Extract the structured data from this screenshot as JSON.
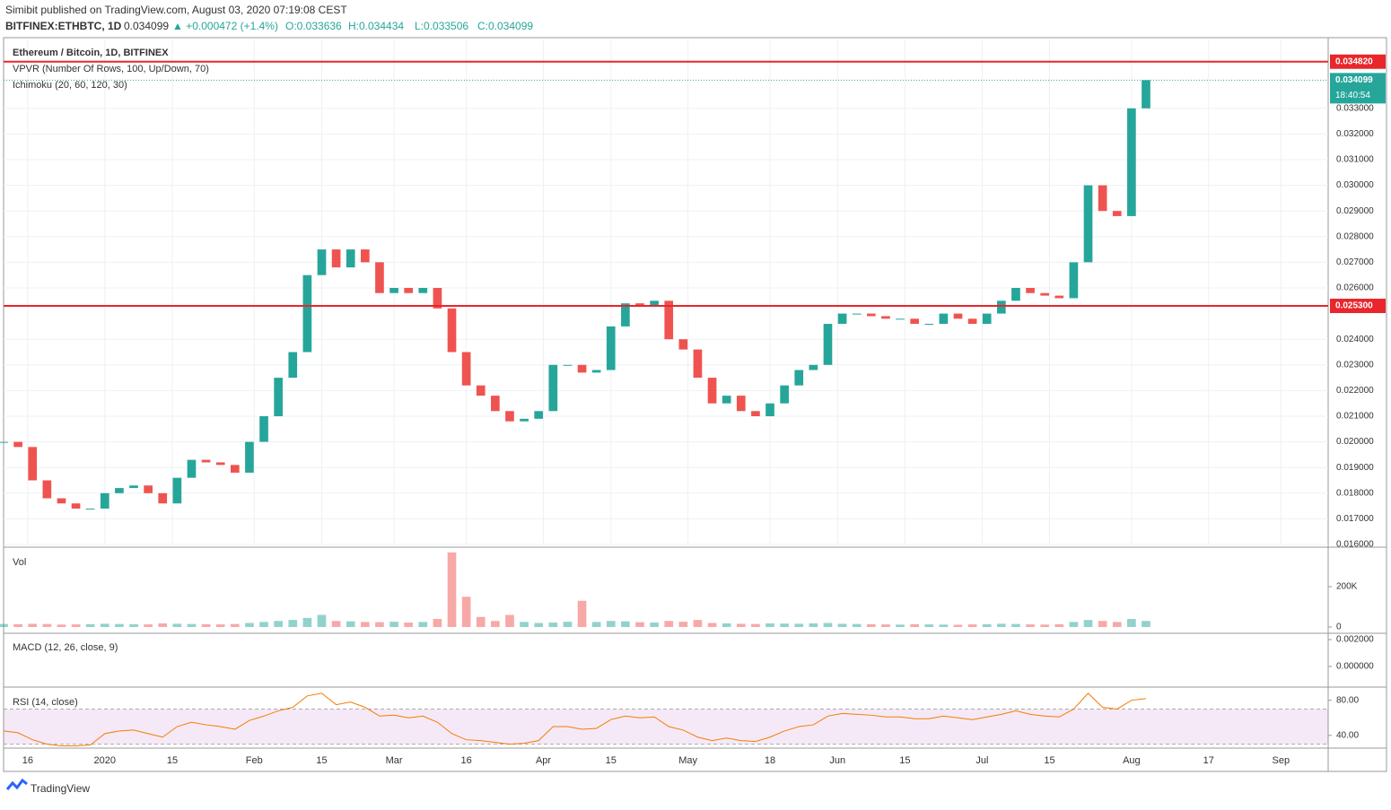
{
  "header": {
    "published": "Simibit published on TradingView.com, August 03, 2020 07:19:08 CEST",
    "symbol": "BITFINEX:ETHBTC, 1D",
    "last": "0.034099",
    "change": "▲ +0.000472 (+1.4%)",
    "open": "O:0.033636",
    "high": "H:0.034434",
    "low": "L:0.033506",
    "close": "C:0.034099"
  },
  "footer": "TradingView",
  "chart_data": {
    "type": "candlestick",
    "title": "Ethereum / Bitcoin, 1D, BITFINEX",
    "indicators": [
      "VPVR (Number Of Rows, 100, Up/Down, 70)",
      "Ichimoku (20, 60, 120, 30)"
    ],
    "up_color": "#26a69a",
    "down_color": "#ef5350",
    "values": [
      0.02,
      0.0198,
      0.0185,
      0.0178,
      0.0176,
      0.0174,
      0.0174,
      0.018,
      0.0182,
      0.0183,
      0.018,
      0.0176,
      0.0186,
      0.0193,
      0.0192,
      0.0191,
      0.0188,
      0.02,
      0.021,
      0.0225,
      0.0235,
      0.0265,
      0.0275,
      0.0268,
      0.0275,
      0.027,
      0.0258,
      0.026,
      0.0258,
      0.026,
      0.0252,
      0.0235,
      0.0222,
      0.0218,
      0.0212,
      0.0208,
      0.0209,
      0.0212,
      0.023,
      0.023,
      0.0227,
      0.0228,
      0.0245,
      0.0254,
      0.0253,
      0.0255,
      0.024,
      0.0236,
      0.0225,
      0.0215,
      0.0218,
      0.0212,
      0.021,
      0.0215,
      0.0222,
      0.0228,
      0.023,
      0.0246,
      0.025,
      0.025,
      0.0249,
      0.0248,
      0.0248,
      0.0246,
      0.0246,
      0.025,
      0.0248,
      0.0246,
      0.025,
      0.0255,
      0.026,
      0.0258,
      0.0257,
      0.0256,
      0.027,
      0.03,
      0.029,
      0.0288,
      0.033,
      0.034099
    ],
    "xlim": [
      0,
      91.6
    ],
    "xticks": [
      {
        "value": 1.67,
        "label": "16"
      },
      {
        "value": 7,
        "label": "2020"
      },
      {
        "value": 11.67,
        "label": "15"
      },
      {
        "value": 17.33,
        "label": "Feb"
      },
      {
        "value": 22,
        "label": "15"
      },
      {
        "value": 27,
        "label": "Mar"
      },
      {
        "value": 32,
        "label": "16"
      },
      {
        "value": 37.33,
        "label": "Apr"
      },
      {
        "value": 42,
        "label": "15"
      },
      {
        "value": 47.33,
        "label": "May"
      },
      {
        "value": 53,
        "label": "18"
      },
      {
        "value": 57.67,
        "label": "Jun"
      },
      {
        "value": 62.33,
        "label": "15"
      },
      {
        "value": 67.67,
        "label": "Jul"
      },
      {
        "value": 72.33,
        "label": "15"
      },
      {
        "value": 78,
        "label": "Aug"
      },
      {
        "value": 83.33,
        "label": "17"
      },
      {
        "value": 88.33,
        "label": "Sep"
      }
    ],
    "ylim": [
      0.016,
      0.03565
    ],
    "yticks": [
      {
        "value": 0.016,
        "label": "0.016000"
      },
      {
        "value": 0.017,
        "label": "0.017000"
      },
      {
        "value": 0.018,
        "label": "0.018000"
      },
      {
        "value": 0.019,
        "label": "0.019000"
      },
      {
        "value": 0.02,
        "label": "0.020000"
      },
      {
        "value": 0.021,
        "label": "0.021000"
      },
      {
        "value": 0.022,
        "label": "0.022000"
      },
      {
        "value": 0.023,
        "label": "0.023000"
      },
      {
        "value": 0.024,
        "label": "0.024000"
      },
      {
        "value": 0.026,
        "label": "0.026000"
      },
      {
        "value": 0.027,
        "label": "0.027000"
      },
      {
        "value": 0.028,
        "label": "0.028000"
      },
      {
        "value": 0.029,
        "label": "0.029000"
      },
      {
        "value": 0.03,
        "label": "0.030000"
      },
      {
        "value": 0.031,
        "label": "0.031000"
      },
      {
        "value": 0.032,
        "label": "0.032000"
      },
      {
        "value": 0.033,
        "label": "0.033000"
      }
    ],
    "price_lines": [
      {
        "value": 0.03482,
        "label": "0.034820",
        "color": "#e8262b"
      },
      {
        "value": 0.0253,
        "label": "0.025300",
        "color": "#e8262b"
      }
    ],
    "last_price": {
      "value": 0.034099,
      "label": "0.034099",
      "color": "#26a69a",
      "countdown": "18:40:54"
    }
  },
  "volume": {
    "title": "Vol",
    "values": [
      15000,
      14000,
      16000,
      15000,
      12000,
      13000,
      14000,
      16000,
      15000,
      14000,
      13000,
      18000,
      16000,
      15000,
      14000,
      13000,
      15000,
      20000,
      25000,
      30000,
      35000,
      45000,
      60000,
      30000,
      28000,
      25000,
      24000,
      26000,
      22000,
      25000,
      40000,
      370000,
      150000,
      50000,
      30000,
      60000,
      25000,
      20000,
      22000,
      26000,
      130000,
      25000,
      30000,
      28000,
      24000,
      22000,
      30000,
      26000,
      35000,
      20000,
      18000,
      16000,
      15000,
      18000,
      17000,
      16000,
      18000,
      20000,
      16000,
      15000,
      14000,
      13000,
      12000,
      14000,
      13000,
      12000,
      11000,
      13000,
      14000,
      16000,
      15000,
      13000,
      12000,
      14000,
      25000,
      35000,
      30000,
      25000,
      40000,
      30000
    ],
    "ylim": [
      0,
      387000
    ],
    "yticks": [
      0,
      {
        "value": 200000,
        "label": "200K"
      }
    ]
  },
  "macd": {
    "title": "MACD (12, 26, close, 9)",
    "ylim": [
      -0.00147,
      0.0024
    ],
    "yticks": [
      {
        "value": 0,
        "label": "0.000000"
      },
      {
        "value": 0.002,
        "label": "0.002000"
      }
    ]
  },
  "rsi": {
    "title": "RSI (14, close)",
    "color": "#f57c00",
    "values": [
      45,
      43,
      35,
      30,
      28,
      28,
      29,
      42,
      45,
      46,
      42,
      38,
      50,
      55,
      52,
      50,
      47,
      57,
      62,
      68,
      72,
      85,
      88,
      75,
      78,
      72,
      62,
      63,
      60,
      62,
      55,
      42,
      35,
      34,
      32,
      30,
      31,
      34,
      50,
      50,
      47,
      48,
      58,
      62,
      60,
      61,
      50,
      46,
      38,
      34,
      37,
      34,
      33,
      38,
      45,
      50,
      52,
      62,
      65,
      64,
      63,
      61,
      61,
      59,
      59,
      62,
      60,
      58,
      61,
      64,
      68,
      64,
      62,
      61,
      70,
      88,
      72,
      70,
      80,
      82
    ],
    "ylim": [
      26.5,
      94
    ],
    "yticks": [
      {
        "value": 40,
        "label": "40.00"
      },
      {
        "value": 80,
        "label": "80.00"
      }
    ],
    "bands": [
      30,
      70
    ]
  }
}
